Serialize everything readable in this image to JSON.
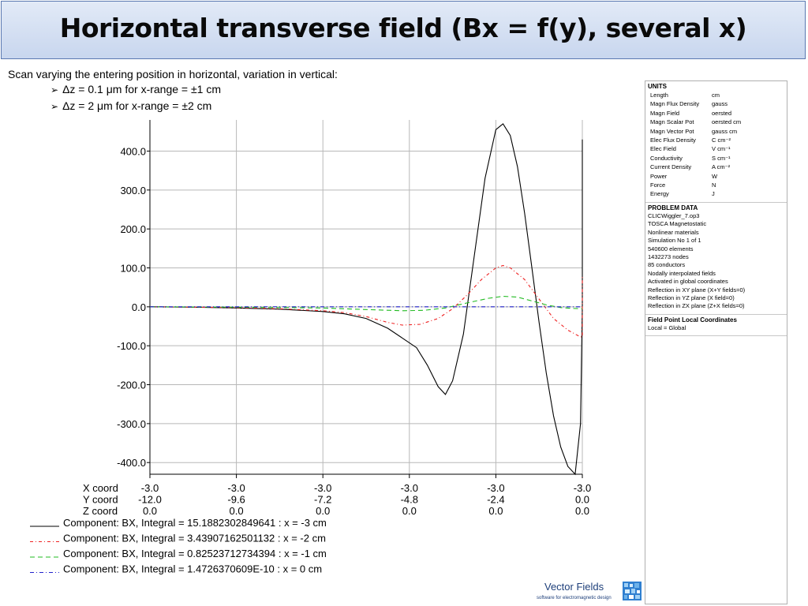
{
  "page": {
    "title": "Horizontal transverse field (Bx = f(y), several x)",
    "intro": "Scan varying the entering position in horizontal, variation in vertical:",
    "bullets": [
      "Δz = 0.1 μm for x-range = ±1 cm",
      "Δz = 2 μm for x-range = ±2 cm"
    ]
  },
  "chart_data": {
    "type": "line",
    "ylim": [
      -430,
      480
    ],
    "yticks": [
      400,
      300,
      200,
      100,
      0,
      -100,
      -200,
      -300,
      -400
    ],
    "ytick_labels": [
      "400.0",
      "300.0",
      "200.0",
      "100.0",
      "0.0",
      "-100.0",
      "-200.0",
      "-300.0",
      "-400.0"
    ],
    "xlim": [
      -12.0,
      0.0
    ],
    "coord_labels": [
      "X coord",
      "Y coord",
      "Z coord"
    ],
    "xticks": [
      {
        "y": -12.0,
        "xc": "-3.0",
        "yc": "-12.0",
        "zc": "0.0"
      },
      {
        "y": -9.6,
        "xc": "-3.0",
        "yc": "-9.6",
        "zc": "0.0"
      },
      {
        "y": -7.2,
        "xc": "-3.0",
        "yc": "-7.2",
        "zc": "0.0"
      },
      {
        "y": -4.8,
        "xc": "-3.0",
        "yc": "-4.8",
        "zc": "0.0"
      },
      {
        "y": -2.4,
        "xc": "-3.0",
        "yc": "-2.4",
        "zc": "0.0"
      },
      {
        "y": 0.0,
        "xc": "-3.0",
        "yc": "0.0",
        "zc": "0.0"
      }
    ],
    "series": [
      {
        "name": "Component: BX, Integral = 15.1882302849641 : x = -3 cm",
        "color": "#000000",
        "dash": "",
        "x": [
          -12.0,
          -10.8,
          -9.6,
          -8.4,
          -7.2,
          -6.6,
          -6.0,
          -5.4,
          -5.0,
          -4.6,
          -4.3,
          -4.0,
          -3.8,
          -3.6,
          -3.3,
          -3.0,
          -2.7,
          -2.4,
          -2.2,
          -2.0,
          -1.8,
          -1.6,
          -1.4,
          -1.2,
          -1.0,
          -0.8,
          -0.6,
          -0.4,
          -0.2,
          -0.05,
          0.0,
          0.0
        ],
        "values": [
          0,
          -1,
          -3,
          -6,
          -12,
          -18,
          -30,
          -55,
          -80,
          -105,
          -150,
          -205,
          -225,
          -190,
          -70,
          130,
          330,
          455,
          470,
          440,
          360,
          240,
          100,
          -40,
          -170,
          -280,
          -360,
          -410,
          -430,
          -300,
          0,
          430
        ]
      },
      {
        "name": "Component: BX, Integral = 3.43907162501132 : x = -2 cm",
        "color": "#ee2222",
        "dash": "4,3,1,3",
        "x": [
          -12.0,
          -9.6,
          -8.4,
          -7.2,
          -6.6,
          -6.0,
          -5.4,
          -5.0,
          -4.5,
          -4.0,
          -3.6,
          -3.2,
          -2.8,
          -2.4,
          -2.2,
          -2.0,
          -1.6,
          -1.2,
          -0.8,
          -0.4,
          -0.1,
          0.0,
          0.0
        ],
        "values": [
          0,
          -2,
          -5,
          -10,
          -15,
          -25,
          -40,
          -47,
          -45,
          -30,
          -5,
          30,
          70,
          100,
          106,
          100,
          70,
          20,
          -30,
          -60,
          -75,
          -78,
          80
        ]
      },
      {
        "name": "Component: BX, Integral = 0.82523712734394 : x = -1 cm",
        "color": "#22bb22",
        "dash": "6,4",
        "x": [
          -12.0,
          -9.6,
          -7.2,
          -6.0,
          -5.0,
          -4.4,
          -3.8,
          -3.2,
          -2.6,
          -2.2,
          -1.8,
          -1.4,
          -1.0,
          -0.6,
          -0.3,
          0.0
        ],
        "values": [
          0,
          -1,
          -3,
          -7,
          -10,
          -9,
          -3,
          10,
          22,
          27,
          25,
          15,
          5,
          -2,
          -4,
          -5
        ]
      },
      {
        "name": "Component: BX, Integral = 1.4726370609E-10 : x = 0 cm",
        "color": "#2222cc",
        "dash": "5,3,1,3",
        "x": [
          -12.0,
          0.0
        ],
        "values": [
          0,
          0
        ]
      }
    ]
  },
  "units_panel": {
    "heading": "UNITS",
    "rows": [
      {
        "name": "Length",
        "unit": "cm"
      },
      {
        "name": "Magn Flux Density",
        "unit": "gauss"
      },
      {
        "name": "Magn Field",
        "unit": "oersted"
      },
      {
        "name": "Magn Scalar Pot",
        "unit": "oersted cm"
      },
      {
        "name": "Magn Vector Pot",
        "unit": "gauss cm"
      },
      {
        "name": "Elec Flux Density",
        "unit": "C cm⁻²"
      },
      {
        "name": "Elec Field",
        "unit": "V cm⁻¹"
      },
      {
        "name": "Conductivity",
        "unit": "S cm⁻¹"
      },
      {
        "name": "Current Density",
        "unit": "A cm⁻²"
      },
      {
        "name": "Power",
        "unit": "W"
      },
      {
        "name": "Force",
        "unit": "N"
      },
      {
        "name": "Energy",
        "unit": "J"
      }
    ]
  },
  "problem_panel": {
    "heading": "PROBLEM DATA",
    "rows": [
      "CLICWiggler_7.op3",
      "TOSCA Magnetostatic",
      "Nonlinear materials",
      "Simulation No 1 of 1",
      "540600 elements",
      "1432273 nodes",
      "85 conductors",
      "Nodally interpolated fields",
      "Activated in global coordinates",
      "Reflection in XY plane (X+Y fields=0)",
      "Reflection in YZ plane (X field=0)",
      "Reflection in ZX plane (Z+X fields=0)"
    ]
  },
  "coords_panel": {
    "heading": "Field Point Local Coordinates",
    "rows": [
      "Local = Global"
    ]
  },
  "logo": {
    "name": "Vector Fields",
    "tagline": "software for electromagnetic design",
    "icon": "vector-fields-logo-icon",
    "color": "#1e3f7a"
  }
}
